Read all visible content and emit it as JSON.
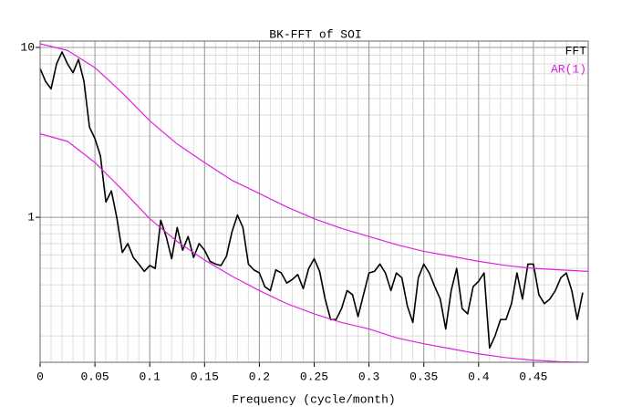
{
  "chart_data": {
    "type": "line",
    "title": "BK-FFT of SOI",
    "x_label": "Frequency (cycle/month)",
    "log_y": true,
    "grid": true,
    "minor_grid": true,
    "x_minor_divisions": 5,
    "legend": "top-right",
    "xlim": [
      0,
      0.5
    ],
    "ylim": [
      0.14,
      10.9
    ],
    "xticks": [
      0,
      0.05,
      0.1,
      0.15,
      0.2,
      0.25,
      0.3,
      0.35,
      0.4,
      0.45
    ],
    "yticks": [
      1,
      10
    ],
    "series": [
      {
        "name": "FFT",
        "color": "#000000",
        "x": [
          0,
          0.005,
          0.01,
          0.015,
          0.02,
          0.025,
          0.03,
          0.035,
          0.04,
          0.045,
          0.05,
          0.055,
          0.06,
          0.065,
          0.07,
          0.075,
          0.08,
          0.085,
          0.09,
          0.095,
          0.1,
          0.105,
          0.11,
          0.115,
          0.12,
          0.125,
          0.13,
          0.135,
          0.14,
          0.145,
          0.15,
          0.155,
          0.16,
          0.165,
          0.17,
          0.175,
          0.18,
          0.185,
          0.19,
          0.195,
          0.2,
          0.205,
          0.21,
          0.215,
          0.22,
          0.225,
          0.23,
          0.235,
          0.24,
          0.245,
          0.25,
          0.255,
          0.26,
          0.265,
          0.27,
          0.275,
          0.28,
          0.285,
          0.29,
          0.295,
          0.3,
          0.305,
          0.31,
          0.315,
          0.32,
          0.325,
          0.33,
          0.335,
          0.34,
          0.345,
          0.35,
          0.355,
          0.36,
          0.365,
          0.37,
          0.375,
          0.38,
          0.385,
          0.39,
          0.395,
          0.4,
          0.405,
          0.41,
          0.415,
          0.42,
          0.425,
          0.43,
          0.435,
          0.44,
          0.445,
          0.45,
          0.455,
          0.46,
          0.465,
          0.47,
          0.475,
          0.48,
          0.485,
          0.49,
          0.495
        ],
        "values": [
          7.5,
          6.3,
          5.7,
          8.0,
          9.4,
          8.0,
          7.1,
          8.5,
          6.3,
          3.4,
          2.9,
          2.3,
          1.23,
          1.43,
          0.99,
          0.62,
          0.7,
          0.58,
          0.53,
          0.48,
          0.52,
          0.5,
          0.96,
          0.77,
          0.57,
          0.87,
          0.64,
          0.77,
          0.58,
          0.7,
          0.64,
          0.55,
          0.53,
          0.52,
          0.59,
          0.82,
          1.03,
          0.87,
          0.53,
          0.49,
          0.47,
          0.39,
          0.37,
          0.49,
          0.47,
          0.41,
          0.43,
          0.46,
          0.38,
          0.5,
          0.57,
          0.48,
          0.33,
          0.25,
          0.25,
          0.29,
          0.37,
          0.35,
          0.26,
          0.35,
          0.47,
          0.48,
          0.53,
          0.47,
          0.37,
          0.47,
          0.44,
          0.3,
          0.24,
          0.44,
          0.53,
          0.47,
          0.39,
          0.33,
          0.22,
          0.37,
          0.5,
          0.29,
          0.27,
          0.39,
          0.42,
          0.47,
          0.17,
          0.2,
          0.25,
          0.25,
          0.31,
          0.47,
          0.33,
          0.53,
          0.53,
          0.35,
          0.31,
          0.33,
          0.37,
          0.44,
          0.47,
          0.37,
          0.25,
          0.36
        ]
      },
      {
        "name": "AR(1)",
        "color": "#e020e0",
        "x": [
          0,
          0.025,
          0.05,
          0.075,
          0.1,
          0.125,
          0.15,
          0.175,
          0.2,
          0.225,
          0.25,
          0.275,
          0.3,
          0.325,
          0.35,
          0.375,
          0.4,
          0.425,
          0.45,
          0.475,
          0.5
        ],
        "values": [
          10.5,
          9.6,
          7.6,
          5.4,
          3.7,
          2.7,
          2.1,
          1.65,
          1.38,
          1.15,
          0.98,
          0.86,
          0.77,
          0.69,
          0.63,
          0.59,
          0.55,
          0.52,
          0.5,
          0.49,
          0.48
        ]
      },
      {
        "color": "#e020e0",
        "x": [
          0,
          0.025,
          0.05,
          0.075,
          0.1,
          0.125,
          0.15,
          0.175,
          0.2,
          0.225,
          0.25,
          0.275,
          0.3,
          0.325,
          0.35,
          0.375,
          0.4,
          0.425,
          0.45,
          0.475,
          0.5
        ],
        "values": [
          3.1,
          2.8,
          2.1,
          1.45,
          0.98,
          0.72,
          0.56,
          0.45,
          0.37,
          0.31,
          0.27,
          0.24,
          0.22,
          0.195,
          0.18,
          0.168,
          0.157,
          0.149,
          0.144,
          0.141,
          0.14
        ]
      }
    ]
  }
}
